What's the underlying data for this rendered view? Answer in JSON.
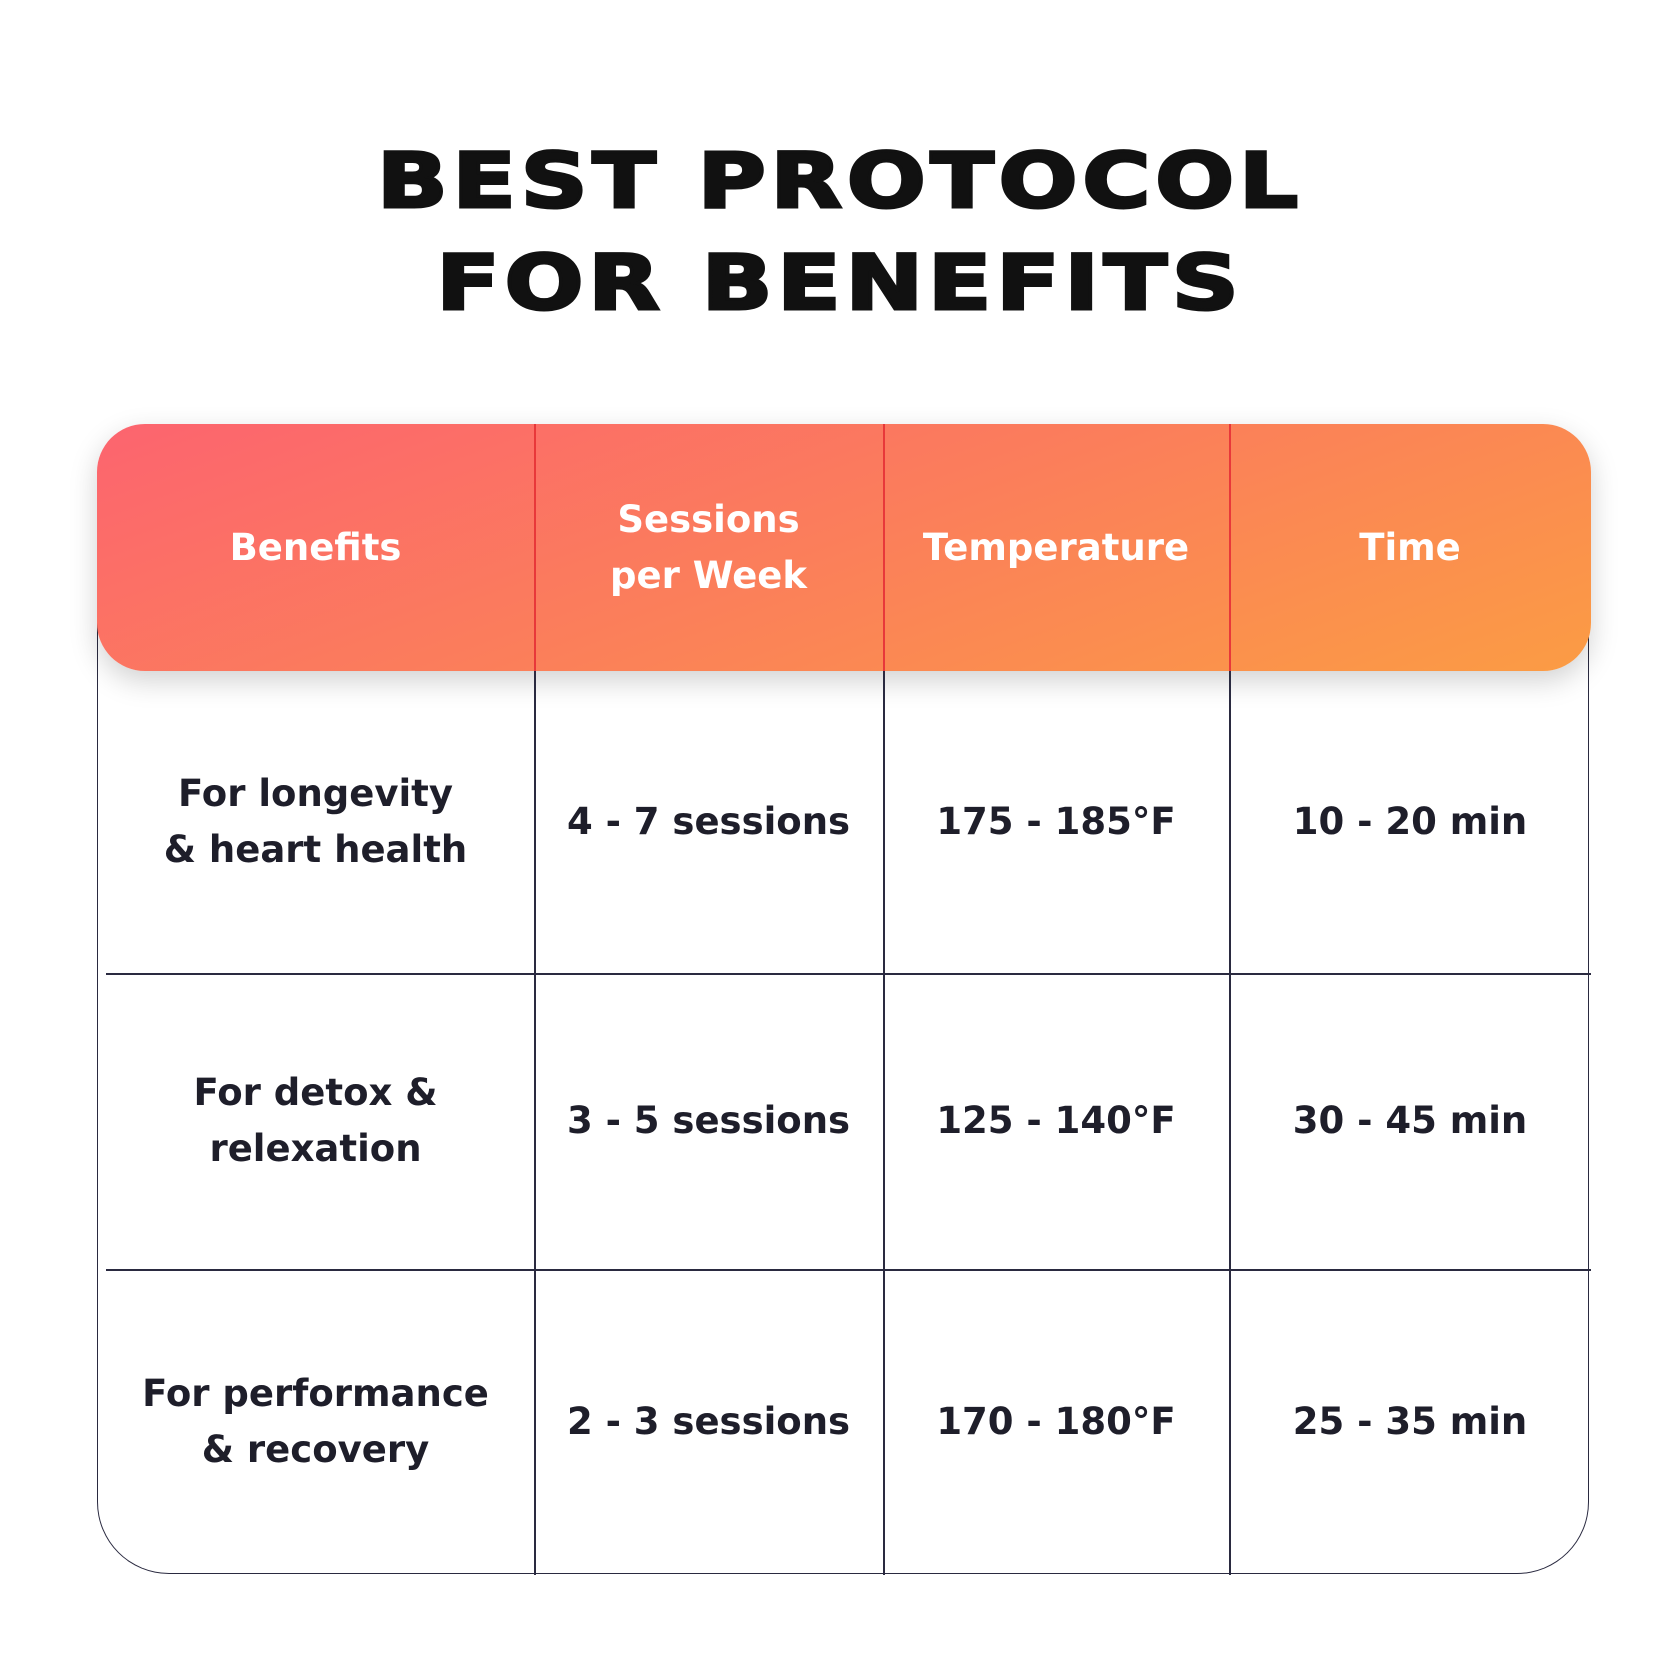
{
  "title": {
    "lines": [
      "BEST PROTOCOL",
      "FOR BENEFITS"
    ]
  },
  "table": {
    "header": [
      [
        "Benefits"
      ],
      [
        "Sessions",
        "per Week"
      ],
      [
        "Temperature"
      ],
      [
        "Time"
      ]
    ],
    "rows": [
      [
        [
          "For longevity",
          "& heart health"
        ],
        [
          "4 - 7 sessions"
        ],
        [
          "175 - 185°F"
        ],
        [
          "10 - 20 min"
        ]
      ],
      [
        [
          "For detox &",
          "relexation"
        ],
        [
          "3 - 5 sessions"
        ],
        [
          "125 - 140°F"
        ],
        [
          "30 - 45 min"
        ]
      ],
      [
        [
          "For performance",
          "& recovery"
        ],
        [
          "2 - 3 sessions"
        ],
        [
          "170 - 180°F"
        ],
        [
          "25 - 35 min"
        ]
      ]
    ]
  }
}
